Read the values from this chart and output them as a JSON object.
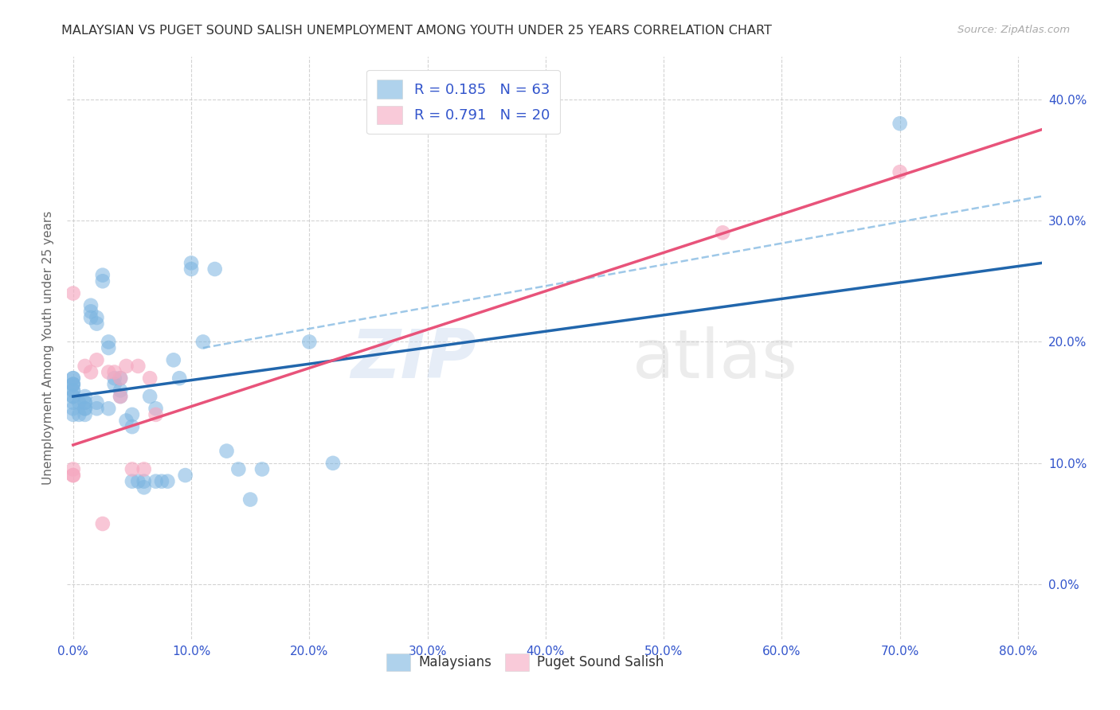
{
  "title": "MALAYSIAN VS PUGET SOUND SALISH UNEMPLOYMENT AMONG YOUTH UNDER 25 YEARS CORRELATION CHART",
  "source": "Source: ZipAtlas.com",
  "ylabel": "Unemployment Among Youth under 25 years",
  "xlim": [
    -0.005,
    0.82
  ],
  "ylim": [
    -0.045,
    0.435
  ],
  "x_ticks": [
    0.0,
    0.1,
    0.2,
    0.3,
    0.4,
    0.5,
    0.6,
    0.7,
    0.8
  ],
  "x_tick_labels": [
    "0.0%",
    "10.0%",
    "20.0%",
    "30.0%",
    "40.0%",
    "50.0%",
    "60.0%",
    "70.0%",
    "80.0%"
  ],
  "y_ticks": [
    0.0,
    0.1,
    0.2,
    0.3,
    0.4
  ],
  "y_tick_labels": [
    "0.0%",
    "10.0%",
    "20.0%",
    "30.0%",
    "40.0%"
  ],
  "blue_color": "#7ab4e0",
  "pink_color": "#f5a8c0",
  "blue_line_color": "#2166ac",
  "pink_line_color": "#e8537a",
  "dashed_line_color": "#9ec8e8",
  "background_color": "#ffffff",
  "grid_color": "#c8c8c8",
  "title_color": "#333333",
  "axis_label_color": "#666666",
  "tick_label_color": "#3355cc",
  "legend_R1": "R = 0.185",
  "legend_N1": "N = 63",
  "legend_R2": "R = 0.791",
  "legend_N2": "N = 20",
  "watermark_zip": "ZIP",
  "watermark_atlas": "atlas",
  "malaysians_x": [
    0.0,
    0.0,
    0.0,
    0.0,
    0.0,
    0.0,
    0.0,
    0.0,
    0.0,
    0.0,
    0.0,
    0.0,
    0.005,
    0.005,
    0.01,
    0.01,
    0.01,
    0.01,
    0.01,
    0.01,
    0.015,
    0.015,
    0.015,
    0.02,
    0.02,
    0.02,
    0.02,
    0.025,
    0.025,
    0.03,
    0.03,
    0.03,
    0.035,
    0.035,
    0.04,
    0.04,
    0.04,
    0.045,
    0.05,
    0.05,
    0.05,
    0.055,
    0.06,
    0.06,
    0.065,
    0.07,
    0.07,
    0.075,
    0.08,
    0.085,
    0.09,
    0.095,
    0.1,
    0.1,
    0.11,
    0.12,
    0.13,
    0.14,
    0.15,
    0.16,
    0.2,
    0.22,
    0.7
  ],
  "malaysians_y": [
    0.14,
    0.145,
    0.15,
    0.155,
    0.155,
    0.16,
    0.16,
    0.165,
    0.165,
    0.165,
    0.17,
    0.17,
    0.14,
    0.15,
    0.14,
    0.145,
    0.145,
    0.15,
    0.15,
    0.155,
    0.22,
    0.225,
    0.23,
    0.215,
    0.22,
    0.145,
    0.15,
    0.25,
    0.255,
    0.195,
    0.2,
    0.145,
    0.165,
    0.17,
    0.155,
    0.16,
    0.17,
    0.135,
    0.13,
    0.14,
    0.085,
    0.085,
    0.08,
    0.085,
    0.155,
    0.145,
    0.085,
    0.085,
    0.085,
    0.185,
    0.17,
    0.09,
    0.26,
    0.265,
    0.2,
    0.26,
    0.11,
    0.095,
    0.07,
    0.095,
    0.2,
    0.1,
    0.38
  ],
  "puget_x": [
    0.0,
    0.0,
    0.0,
    0.0,
    0.01,
    0.015,
    0.02,
    0.025,
    0.03,
    0.035,
    0.04,
    0.04,
    0.045,
    0.05,
    0.055,
    0.06,
    0.065,
    0.07,
    0.55,
    0.7
  ],
  "puget_y": [
    0.09,
    0.09,
    0.095,
    0.24,
    0.18,
    0.175,
    0.185,
    0.05,
    0.175,
    0.175,
    0.17,
    0.155,
    0.18,
    0.095,
    0.18,
    0.095,
    0.17,
    0.14,
    0.29,
    0.34
  ],
  "blue_line_x0": 0.0,
  "blue_line_x1": 0.82,
  "blue_line_y0": 0.155,
  "blue_line_y1": 0.265,
  "pink_line_x0": 0.0,
  "pink_line_x1": 0.82,
  "pink_line_y0": 0.115,
  "pink_line_y1": 0.375,
  "dash_line_x0": 0.11,
  "dash_line_x1": 0.82,
  "dash_line_y0": 0.195,
  "dash_line_y1": 0.32
}
